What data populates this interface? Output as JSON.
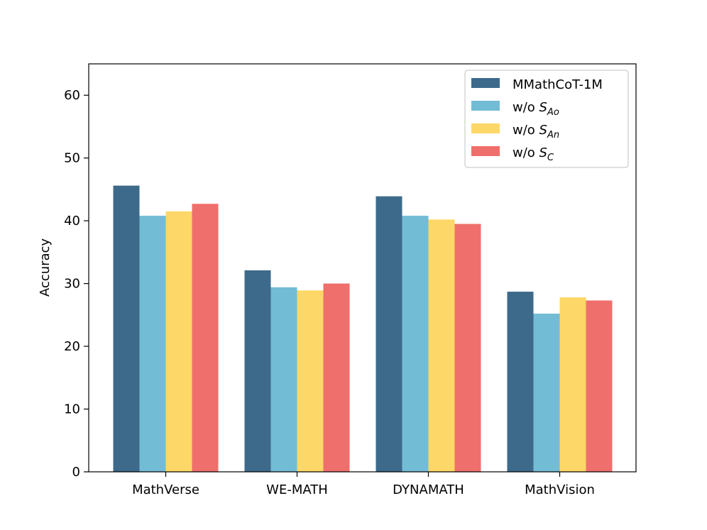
{
  "chart_data": {
    "type": "bar",
    "title": "",
    "xlabel": "",
    "ylabel": "Accuracy",
    "ylim": [
      0,
      65
    ],
    "yticks": [
      0,
      10,
      20,
      30,
      40,
      50,
      60
    ],
    "categories": [
      "MathVerse",
      "WE-MATH",
      "DYNAMATH",
      "MathVision"
    ],
    "legend_position": "top-right",
    "grid": false,
    "series": [
      {
        "name": "MMathCoT-1M",
        "name_base": "MMathCoT-1M",
        "name_sub": "",
        "color": "#3d6a8a",
        "values": [
          45.6,
          32.1,
          43.9,
          28.7
        ]
      },
      {
        "name": "w/o S_Ao",
        "name_base": "w/o S",
        "name_sub": "Ao",
        "color": "#73bcd5",
        "values": [
          40.8,
          29.4,
          40.8,
          25.2
        ]
      },
      {
        "name": "w/o S_An",
        "name_base": "w/o S",
        "name_sub": "An",
        "color": "#fdd767",
        "values": [
          41.5,
          28.9,
          40.2,
          27.8
        ]
      },
      {
        "name": "w/o S_C",
        "name_base": "w/o S",
        "name_sub": "C",
        "color": "#ef6f6c",
        "values": [
          42.7,
          30.0,
          39.5,
          27.3
        ]
      }
    ]
  }
}
